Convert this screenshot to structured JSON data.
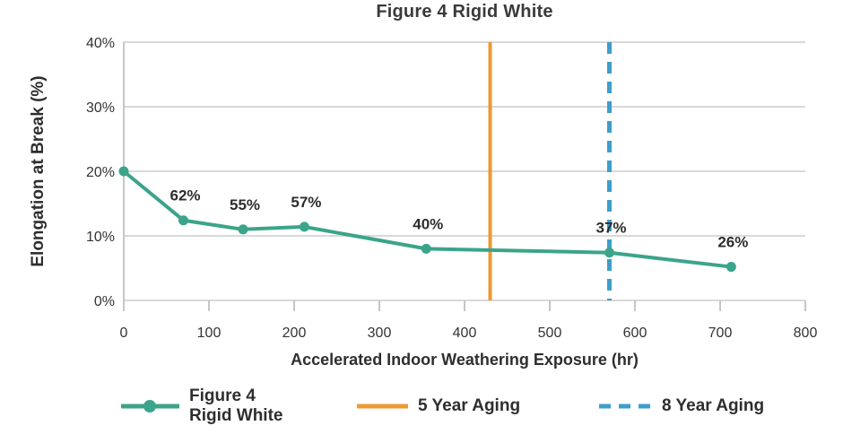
{
  "chart_data": {
    "type": "line",
    "title": "Figure 4 Rigid White",
    "xlabel": "Accelerated Indoor Weathering Exposure (hr)",
    "ylabel": "Elongation at Break (%)",
    "xlim": [
      0,
      800
    ],
    "ylim": [
      0,
      40
    ],
    "x_ticks": [
      0,
      100,
      200,
      300,
      400,
      500,
      600,
      700,
      800
    ],
    "y_ticks": [
      0,
      10,
      20,
      30,
      40
    ],
    "y_tick_suffix": "%",
    "grid": "horizontal gridlines on, light gray",
    "legend_position": "bottom",
    "series": [
      {
        "name": "Figure 4 Rigid White",
        "color": "#3BA48A",
        "marker": "circle",
        "x": [
          0,
          70,
          140,
          212,
          355,
          570,
          713
        ],
        "y": [
          20,
          12.4,
          11,
          11.4,
          8,
          7.4,
          5.2
        ],
        "point_labels": [
          "",
          "62%",
          "55%",
          "57%",
          "40%",
          "37%",
          "26%"
        ]
      }
    ],
    "reference_lines": [
      {
        "name": "5 Year Aging",
        "x": 430,
        "color": "#EE9833",
        "style": "solid"
      },
      {
        "name": "8 Year Aging",
        "x": 570,
        "color": "#3E9DCC",
        "style": "dashed"
      }
    ]
  },
  "legend": {
    "items": [
      {
        "label": "Figure 4\nRigid White",
        "swatch": "teal-line-with-marker"
      },
      {
        "label": "5 Year Aging",
        "swatch": "orange-solid-line"
      },
      {
        "label": "8 Year Aging",
        "swatch": "blue-dashed-line"
      }
    ]
  },
  "colors": {
    "series_teal": "#3BA48A",
    "aging5_orange": "#EE9833",
    "aging8_blue": "#3E9DCC",
    "gridline": "#D9D9D9",
    "axis": "#C6C6C6",
    "tick_text": "#333333",
    "title_text": "#3A3A3A",
    "label_text": "#2D2D2D"
  }
}
